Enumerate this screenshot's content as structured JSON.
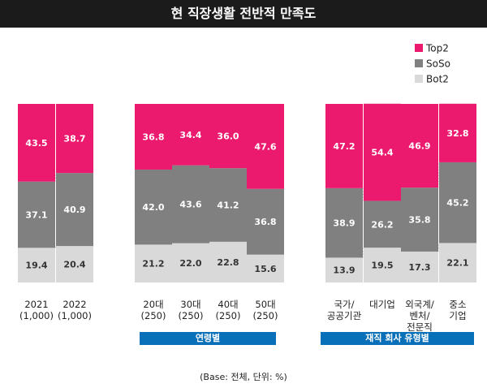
{
  "header": {
    "title": "현 직장생활 전반적 만족도"
  },
  "chart_data": {
    "type": "bar",
    "stacked": true,
    "title": "현 직장생활 전반적 만족도",
    "ylim": [
      0,
      100
    ],
    "categories": [
      "2021\n(1,000)",
      "2022\n(1,000)",
      "20대\n(250)",
      "30대\n(250)",
      "40대\n(250)",
      "50대\n(250)",
      "국가/\n공공기관",
      "대기업",
      "외국계/\n벤처/\n전문직",
      "중소\n기업"
    ],
    "series": [
      {
        "name": "Bot2",
        "color": "#d9d9d9",
        "values": [
          19.4,
          20.4,
          21.2,
          22.0,
          22.8,
          15.6,
          13.9,
          19.5,
          17.3,
          22.1
        ]
      },
      {
        "name": "SoSo",
        "color": "#808080",
        "values": [
          37.1,
          40.9,
          42.0,
          43.6,
          41.2,
          36.8,
          38.9,
          26.2,
          35.8,
          45.2
        ]
      },
      {
        "name": "Top2",
        "color": "#ec1a6e",
        "values": [
          43.5,
          38.7,
          36.8,
          34.4,
          36.0,
          47.6,
          47.2,
          54.4,
          46.9,
          32.8
        ]
      }
    ],
    "legend": {
      "position": "top-right",
      "order": [
        "Top2",
        "SoSo",
        "Bot2"
      ]
    },
    "groups": [
      {
        "label": "연령별",
        "start": 2,
        "end": 5
      },
      {
        "label": "재직 회사 유형별",
        "start": 6,
        "end": 9
      }
    ],
    "footnote": "(Base: 전체, 단위: %)"
  }
}
